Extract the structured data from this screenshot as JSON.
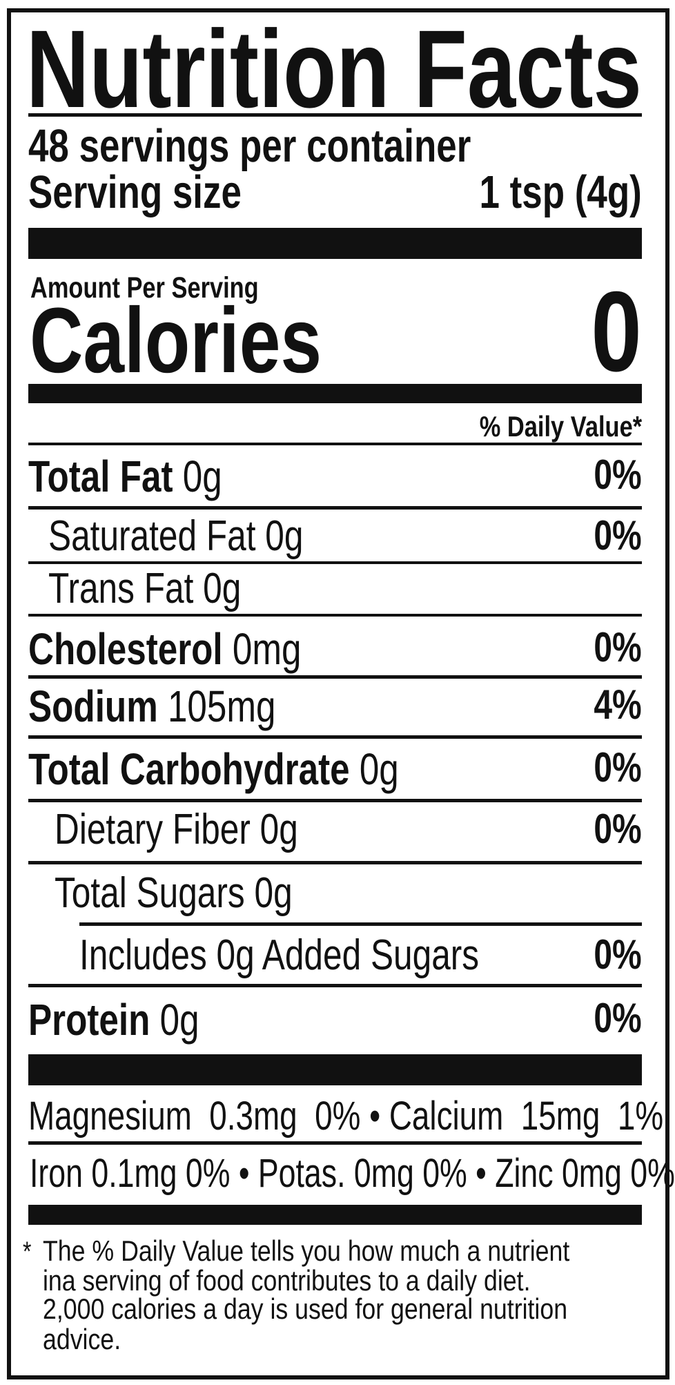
{
  "title": "Nutrition Facts",
  "servings": "48 servings per container",
  "serving_size_label": "Serving size",
  "serving_size_value": "1 tsp (4g)",
  "amount_per_serving": "Amount Per Serving",
  "calories_label": "Calories",
  "calories_value": "0",
  "daily_value_header": "% Daily Value*",
  "nutrients": [
    {
      "name": "Total Fat",
      "amount": "0g",
      "dv": "0%"
    },
    {
      "name": "Saturated Fat 0g",
      "dv": "0%"
    },
    {
      "name": "Trans Fat 0g"
    },
    {
      "name": "Cholesterol",
      "amount": "0mg",
      "dv": "0%"
    },
    {
      "name": "Sodium",
      "amount": "105mg",
      "dv": "4%"
    },
    {
      "name": "Total Carbohydrate",
      "amount": "0g",
      "dv": "0%"
    },
    {
      "name": "Dietary Fiber 0g",
      "dv": "0%"
    },
    {
      "name": "Total Sugars 0g"
    },
    {
      "name": "Includes 0g Added Sugars",
      "dv": "0%"
    },
    {
      "name": "Protein",
      "amount": "0g",
      "dv": "0%"
    }
  ],
  "vitamins_line1": "Magnesium  0.3mg  0% • Calcium  15mg  1%",
  "vitamins_line2": "Iron 0.1mg 0% • Potas. 0mg 0% • Zinc 0mg 0%",
  "footnote": {
    "star": "*",
    "lines": [
      "The % Daily Value tells you how much a nutrient",
      "ina serving of food contributes to a daily diet.",
      "2,000 calories a day is used for general nutrition",
      "advice."
    ]
  }
}
